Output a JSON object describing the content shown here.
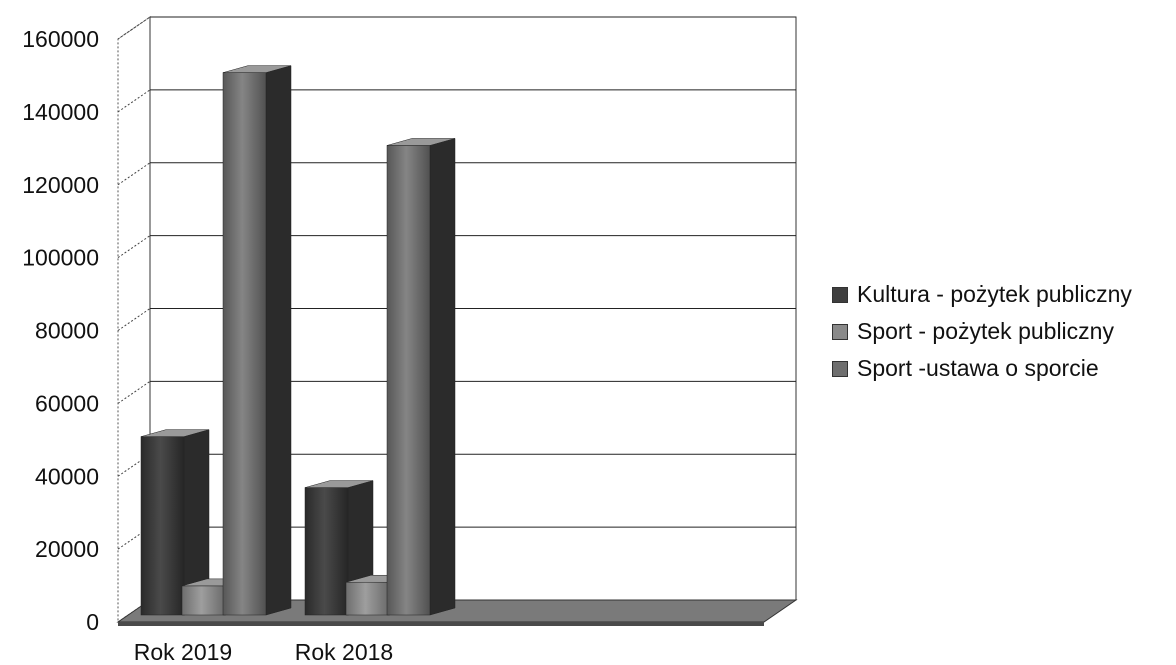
{
  "chart_data": {
    "type": "bar",
    "style": "3d-clustered",
    "categories": [
      "Rok 2019",
      "Rok 2018"
    ],
    "series": [
      {
        "name": "Kultura - pożytek publiczny",
        "values": [
          49000,
          35000
        ],
        "color": "#3f3f3f"
      },
      {
        "name": "Sport - pożytek publiczny",
        "values": [
          8000,
          9000
        ],
        "color": "#8a8a8a"
      },
      {
        "name": "Sport -ustawa o sporcie",
        "values": [
          149000,
          129000
        ],
        "color": "#6f6f6f"
      }
    ],
    "ylim": [
      0,
      160000
    ],
    "yticks": [
      "0",
      "20000",
      "40000",
      "60000",
      "80000",
      "100000",
      "120000",
      "140000",
      "160000"
    ],
    "grid": true,
    "legend_position": "right"
  }
}
